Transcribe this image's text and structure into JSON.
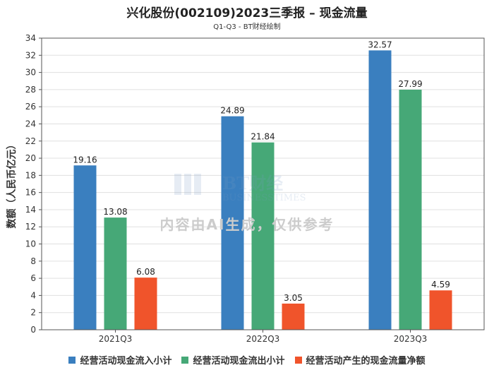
{
  "header": {
    "title": "兴化股份(002109)2023三季报 – 现金流量",
    "subtitle": "Q1-Q3 - BT财经绘制"
  },
  "watermark": {
    "brand": "BT财经",
    "brand_sub": "BUSINESSTIMES",
    "notice": "内容由AI生成，仅供参考"
  },
  "colors": {
    "series_inflow": "#3a7fbf",
    "series_outflow": "#46a877",
    "series_net": "#f0542b",
    "axis": "#555555",
    "grid": "#e0e0e0"
  },
  "chart_data": {
    "type": "bar",
    "title": "兴化股份(002109)2023三季报 – 现金流量",
    "subtitle": "Q1-Q3 - BT财经绘制",
    "xlabel": "",
    "ylabel": "数额（人民币亿元）",
    "ylim": [
      0,
      34
    ],
    "yticks": [
      0,
      2,
      4,
      6,
      8,
      10,
      12,
      14,
      16,
      18,
      20,
      22,
      24,
      26,
      28,
      30,
      32,
      34
    ],
    "grid": true,
    "legend_position": "bottom",
    "categories": [
      "2021Q3",
      "2022Q3",
      "2023Q3"
    ],
    "series": [
      {
        "name": "经营活动现金流入小计",
        "values": [
          19.16,
          24.89,
          32.57
        ],
        "labels": [
          "19.16",
          "24.89",
          "32.57"
        ]
      },
      {
        "name": "经营活动现金流出小计",
        "values": [
          13.08,
          21.84,
          27.99
        ],
        "labels": [
          "13.08",
          "21.84",
          "27.99"
        ]
      },
      {
        "name": "经营活动产生的现金流量净额",
        "values": [
          6.08,
          3.05,
          4.59
        ],
        "labels": [
          "6.08",
          "3.05",
          "4.59"
        ]
      }
    ]
  }
}
